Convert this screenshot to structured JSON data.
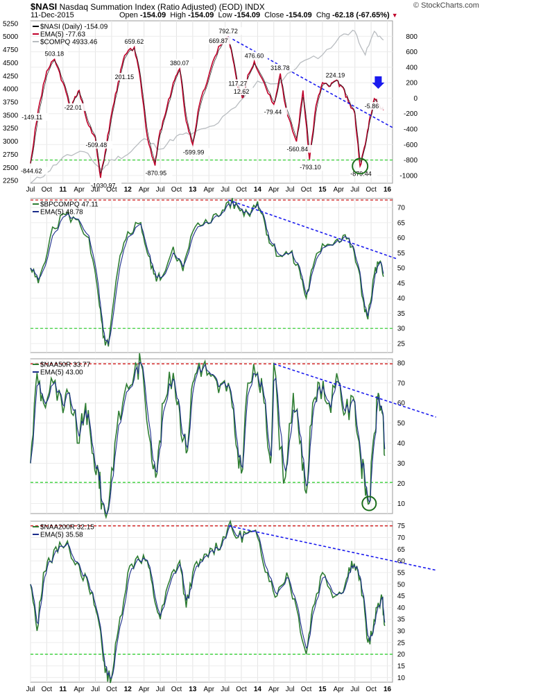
{
  "header": {
    "symbol": "$NASI",
    "title": "Nasdaq Summation Index (Ratio Adjusted) (EOD)",
    "exchange": "INDX",
    "date": "11-Dec-2015",
    "open_label": "Open",
    "open": "-154.09",
    "high_label": "High",
    "high": "-154.09",
    "low_label": "Low",
    "low": "-154.09",
    "close_label": "Close",
    "close": "-154.09",
    "chg_label": "Chg",
    "chg": "-62.18 (-67.65%)",
    "source": "© StockCharts.com"
  },
  "colors": {
    "nasi": "#c0002a",
    "compq": "#b8bcc0",
    "ema": "#1b2c8a",
    "breadth": "#2e7d32",
    "trend": "#1a1aee",
    "support": "#22cc22",
    "resistance": "#cc0000"
  },
  "x_axis_labels": [
    "Jul",
    "Oct",
    "11",
    "Apr",
    "Jul",
    "Oct",
    "12",
    "Apr",
    "Jul",
    "Oct",
    "13",
    "Apr",
    "Jul",
    "Oct",
    "14",
    "Apr",
    "Jul",
    "Oct",
    "15",
    "Apr",
    "Jul",
    "Oct",
    "16"
  ],
  "chart_data": [
    {
      "type": "line",
      "panel": "nasi",
      "legend": [
        "$NASI (Daily) -154.09",
        "EMA(5) -77.63",
        "$COMPQ 4933.46"
      ],
      "left_axis": {
        "label": "$COMPQ",
        "ticks": [
          2250,
          2500,
          2750,
          3000,
          3250,
          3500,
          3750,
          4000,
          4250,
          4500,
          4750,
          5000,
          5250
        ],
        "range": [
          2200,
          5300
        ]
      },
      "right_axis": {
        "label": "$NASI",
        "ticks": [
          800,
          600,
          400,
          200,
          0,
          -200,
          -400,
          -600,
          -800,
          -1000
        ],
        "range": [
          -1100,
          1000
        ]
      },
      "annotations": [
        "-149.11",
        "503.18",
        "-22.01",
        "201.15",
        "659.62",
        "-509.48",
        "380.07",
        "669.87",
        "792.72",
        "117.27",
        "12.62",
        "476.60",
        "318.78",
        "-79.44",
        "224.19",
        "-844.62",
        "-1030.97",
        "-870.95",
        "-599.99",
        "-560.84",
        "-793.10",
        "-879.44",
        "-5.86"
      ],
      "nasi_series": {
        "x": [
          2010.5,
          2010.62,
          2010.75,
          2010.87,
          2011.0,
          2011.12,
          2011.17,
          2011.25,
          2011.37,
          2011.5,
          2011.58,
          2011.65,
          2011.75,
          2011.85,
          2011.95,
          2012.1,
          2012.2,
          2012.3,
          2012.42,
          2012.48,
          2012.58,
          2012.7,
          2012.8,
          2012.9,
          2013.0,
          2013.1,
          2013.25,
          2013.4,
          2013.55,
          2013.62,
          2013.7,
          2013.78,
          2013.85,
          2013.95,
          2014.1,
          2014.25,
          2014.35,
          2014.45,
          2014.6,
          2014.7,
          2014.8,
          2014.9,
          2015.0,
          2015.1,
          2015.2,
          2015.3,
          2015.4,
          2015.5,
          2015.58,
          2015.66,
          2015.72,
          2015.8,
          2015.88,
          2015.94
        ],
        "y": [
          -844.62,
          -149.11,
          350,
          503.18,
          200,
          -150,
          -22.01,
          100,
          -300,
          -509.48,
          -1030.97,
          -700,
          -200,
          201.15,
          550,
          659.62,
          200,
          -500,
          -870.95,
          -500,
          -200,
          200,
          380.07,
          -300,
          -599.99,
          -100,
          300,
          669.87,
          792.72,
          500,
          117.27,
          12.62,
          300,
          476.6,
          200,
          -79.44,
          318.78,
          -200,
          -560.84,
          100,
          -793.1,
          -100,
          200,
          150,
          224.19,
          150,
          -50,
          -200,
          -879.44,
          -600,
          -300,
          -5.86,
          -100,
          -154.09
        ]
      },
      "compq_series": {
        "x": [
          2010.5,
          2010.75,
          2011.0,
          2011.33,
          2011.6,
          2011.75,
          2012.0,
          2012.25,
          2012.5,
          2012.75,
          2013.0,
          2013.33,
          2013.66,
          2014.0,
          2014.33,
          2014.66,
          2015.0,
          2015.33,
          2015.5,
          2015.66,
          2015.8,
          2015.94
        ],
        "y": [
          2200,
          2400,
          2700,
          2800,
          2450,
          2650,
          2750,
          3050,
          2850,
          3100,
          3150,
          3300,
          3650,
          4150,
          4100,
          4500,
          4650,
          5050,
          5100,
          4650,
          5100,
          4933.46
        ]
      },
      "support_line": -800,
      "trendline": {
        "from": [
          2013.55,
          792.72
        ],
        "to": [
          2016.08,
          -380
        ]
      }
    },
    {
      "type": "line",
      "panel": "bpcompq",
      "legend": [
        "$BPCOMPQ 47.11",
        "EMA(5) 48.78"
      ],
      "right_axis": {
        "ticks": [
          70,
          65,
          60,
          55,
          50,
          45,
          40,
          35,
          30,
          25
        ],
        "range": [
          22,
          73
        ]
      },
      "resistance_line": 72.5,
      "support_line": 30,
      "trendline": {
        "from": [
          2013.55,
          72.5
        ],
        "to": [
          2016.15,
          53
        ]
      },
      "series": {
        "x": [
          2010.5,
          2010.62,
          2010.8,
          2011.0,
          2011.2,
          2011.4,
          2011.55,
          2011.62,
          2011.7,
          2011.85,
          2012.0,
          2012.2,
          2012.3,
          2012.4,
          2012.5,
          2012.7,
          2012.85,
          2013.0,
          2013.2,
          2013.4,
          2013.55,
          2013.7,
          2013.85,
          2014.0,
          2014.1,
          2014.2,
          2014.35,
          2014.5,
          2014.65,
          2014.75,
          2014.85,
          2015.0,
          2015.2,
          2015.35,
          2015.45,
          2015.55,
          2015.62,
          2015.7,
          2015.8,
          2015.88,
          2015.94
        ],
        "y": [
          50,
          45,
          60,
          68,
          66,
          60,
          40,
          27,
          24,
          50,
          62,
          65,
          55,
          48,
          46,
          57,
          49,
          62,
          66,
          67,
          72,
          70,
          68,
          72,
          66,
          58,
          54,
          55,
          49,
          40,
          50,
          58,
          59,
          61,
          57,
          50,
          40,
          33,
          48,
          52,
          47.11
        ]
      }
    },
    {
      "type": "line",
      "panel": "naa50r",
      "legend": [
        "$NAA50R 33.77",
        "EMA(5) 43.00"
      ],
      "right_axis": {
        "ticks": [
          80,
          70,
          60,
          50,
          40,
          30,
          20,
          10
        ],
        "range": [
          5,
          82
        ]
      },
      "resistance_line": 79.5,
      "support_line": 20.5,
      "trendline": {
        "from": [
          2014.25,
          79.5
        ],
        "to": [
          2016.75,
          53
        ]
      },
      "series": {
        "x": [
          2010.5,
          2010.6,
          2010.7,
          2010.85,
          2011.0,
          2011.1,
          2011.25,
          2011.35,
          2011.45,
          2011.55,
          2011.6,
          2011.68,
          2011.8,
          2011.95,
          2012.1,
          2012.2,
          2012.35,
          2012.45,
          2012.55,
          2012.7,
          2012.8,
          2012.9,
          2013.0,
          2013.1,
          2013.25,
          2013.4,
          2013.55,
          2013.65,
          2013.75,
          2013.85,
          2014.0,
          2014.1,
          2014.2,
          2014.25,
          2014.4,
          2014.55,
          2014.65,
          2014.75,
          2014.85,
          2014.95,
          2015.1,
          2015.25,
          2015.35,
          2015.5,
          2015.58,
          2015.65,
          2015.72,
          2015.8,
          2015.86,
          2015.92,
          2015.96
        ],
        "y": [
          30,
          75,
          60,
          70,
          55,
          65,
          40,
          60,
          35,
          25,
          10,
          5,
          40,
          65,
          75,
          80,
          40,
          25,
          60,
          75,
          55,
          35,
          70,
          80,
          75,
          65,
          70,
          45,
          25,
          70,
          75,
          60,
          30,
          80,
          20,
          65,
          40,
          15,
          60,
          70,
          60,
          70,
          55,
          60,
          35,
          20,
          10,
          45,
          65,
          55,
          33.77
        ]
      }
    },
    {
      "type": "line",
      "panel": "naa200r",
      "legend": [
        "$NAA200R 32.15",
        "EMA(5) 35.58"
      ],
      "right_axis": {
        "ticks": [
          75,
          70,
          65,
          60,
          55,
          50,
          45,
          40,
          35,
          30,
          25,
          20,
          15,
          10
        ],
        "range": [
          8,
          77
        ]
      },
      "resistance_line": 75,
      "support_line": 20,
      "trendline": {
        "from": [
          2013.55,
          75
        ],
        "to": [
          2016.75,
          56
        ]
      },
      "series": {
        "x": [
          2010.5,
          2010.6,
          2010.7,
          2010.8,
          2010.95,
          2011.1,
          2011.25,
          2011.4,
          2011.5,
          2011.58,
          2011.65,
          2011.75,
          2011.85,
          2012.0,
          2012.15,
          2012.3,
          2012.4,
          2012.5,
          2012.65,
          2012.8,
          2012.9,
          2013.0,
          2013.15,
          2013.3,
          2013.45,
          2013.55,
          2013.7,
          2013.85,
          2014.0,
          2014.15,
          2014.3,
          2014.45,
          2014.6,
          2014.75,
          2014.85,
          2015.0,
          2015.2,
          2015.35,
          2015.45,
          2015.55,
          2015.62,
          2015.7,
          2015.78,
          2015.86,
          2015.92,
          2015.96
        ],
        "y": [
          50,
          30,
          55,
          60,
          68,
          65,
          58,
          48,
          40,
          30,
          12,
          10,
          30,
          55,
          62,
          60,
          45,
          35,
          52,
          60,
          40,
          55,
          60,
          65,
          68,
          75,
          70,
          72,
          70,
          55,
          45,
          55,
          40,
          20,
          40,
          55,
          45,
          50,
          60,
          55,
          45,
          25,
          30,
          42,
          44,
          32.15
        ]
      }
    }
  ]
}
